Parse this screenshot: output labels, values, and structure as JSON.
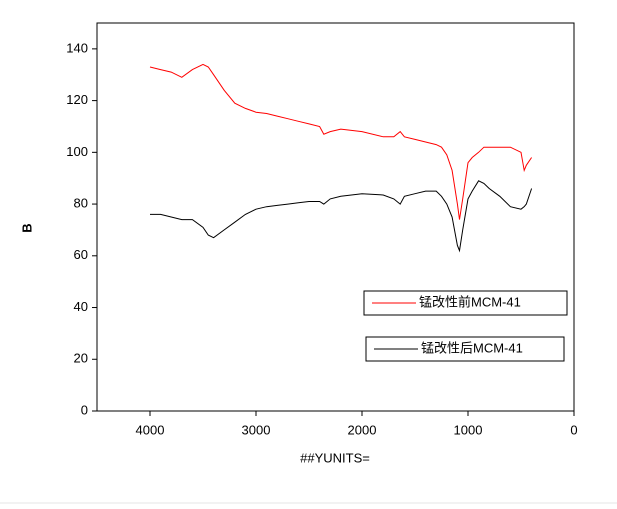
{
  "chart_data": {
    "type": "line",
    "xlabel": "##YUNITS=",
    "ylabel": "B",
    "xlim": [
      4500,
      0
    ],
    "ylim": [
      0,
      150
    ],
    "xticks": [
      4000,
      3000,
      2000,
      1000,
      0
    ],
    "yticks": [
      0,
      20,
      40,
      60,
      80,
      100,
      120,
      140
    ],
    "x": [
      4000,
      3900,
      3800,
      3700,
      3600,
      3500,
      3450,
      3400,
      3300,
      3200,
      3100,
      3000,
      2900,
      2800,
      2700,
      2600,
      2500,
      2400,
      2360,
      2300,
      2200,
      2000,
      1800,
      1700,
      1640,
      1600,
      1500,
      1400,
      1300,
      1250,
      1200,
      1150,
      1100,
      1080,
      1050,
      1000,
      960,
      900,
      850,
      800,
      700,
      600,
      500,
      470,
      450,
      400
    ],
    "series": [
      {
        "name": "锰改性前MCM-41",
        "color": "#ff0000",
        "values": [
          133,
          132,
          131,
          129,
          132,
          134,
          133,
          130,
          124,
          119,
          117,
          115.5,
          115,
          114,
          113,
          112,
          111,
          110,
          107,
          108,
          109,
          108,
          106,
          106,
          108,
          106,
          105,
          104,
          103,
          102,
          99,
          93,
          80,
          74,
          82,
          96,
          98,
          100,
          102,
          102,
          102,
          102,
          100,
          93,
          95,
          98
        ]
      },
      {
        "name": "锰改性后MCM-41",
        "color": "#000000",
        "values": [
          76,
          76,
          75,
          74,
          74,
          71,
          68,
          67,
          70,
          73,
          76,
          78,
          79,
          79.5,
          80,
          80.5,
          81,
          81,
          80,
          82,
          83,
          84,
          83.5,
          82,
          80,
          83,
          84,
          85,
          85,
          83,
          80,
          75,
          64,
          62,
          70,
          82,
          85,
          89,
          88,
          86,
          83,
          79,
          78,
          79,
          80,
          86
        ]
      }
    ]
  }
}
